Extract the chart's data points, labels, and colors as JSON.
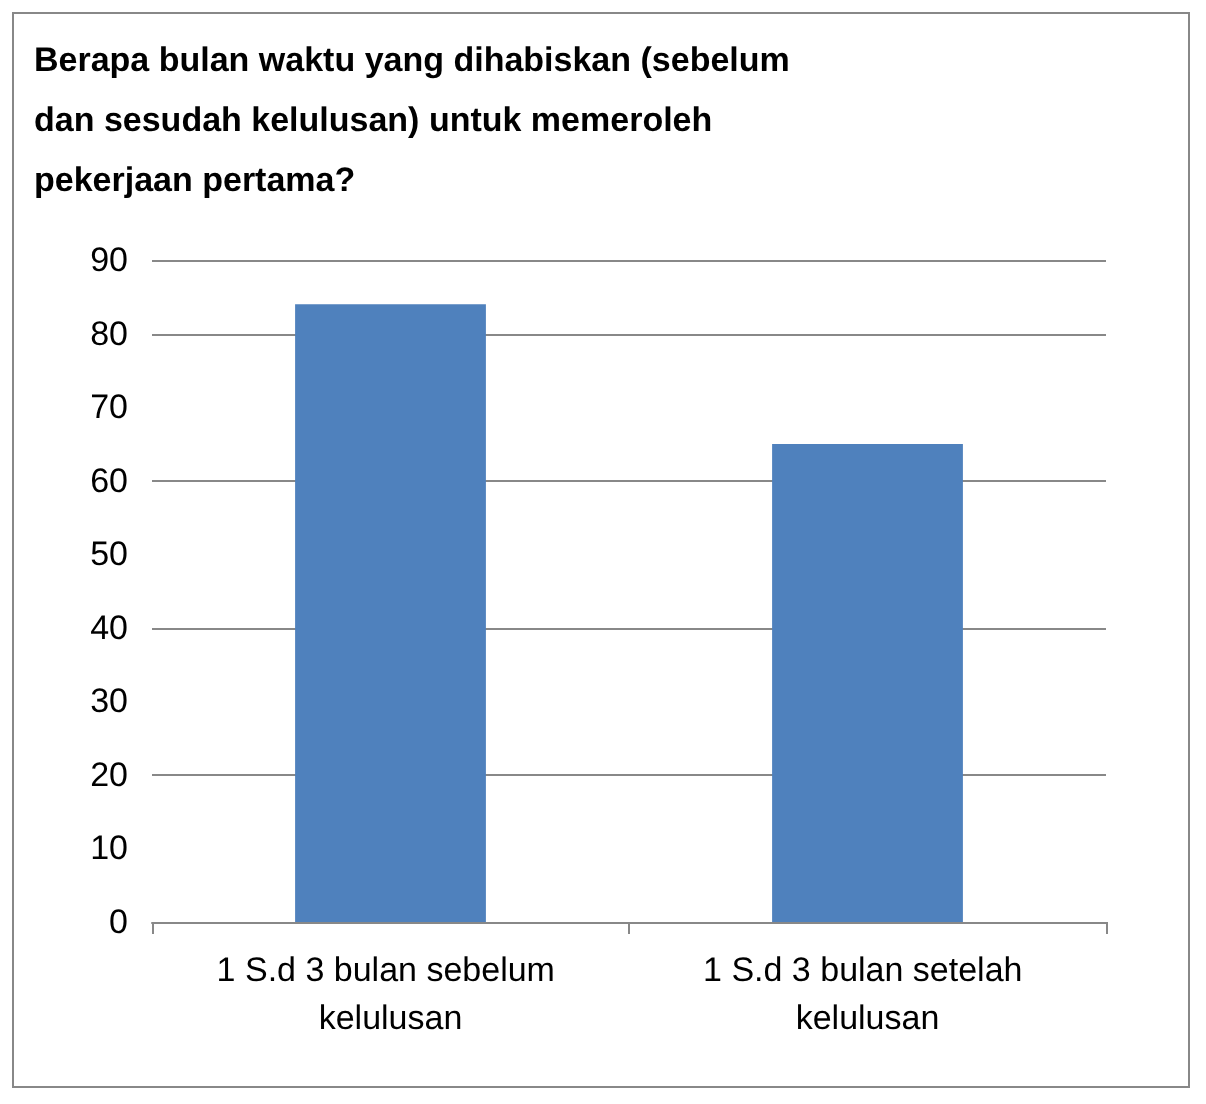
{
  "chart_data": {
    "type": "bar",
    "title": "Berapa bulan waktu yang dihabiskan (sebelum dan sesudah kelulusan) untuk memeroleh pekerjaan pertama?",
    "categories": [
      "1 S.d 3 bulan sebelum kelulusan",
      "1 S.d 3 bulan setelah kelulusan"
    ],
    "values": [
      84,
      65
    ],
    "color": "#4f81bd",
    "ylim": [
      0,
      90
    ],
    "yticks": [
      0,
      10,
      20,
      30,
      40,
      50,
      60,
      70,
      80,
      90
    ],
    "grid": "y"
  }
}
